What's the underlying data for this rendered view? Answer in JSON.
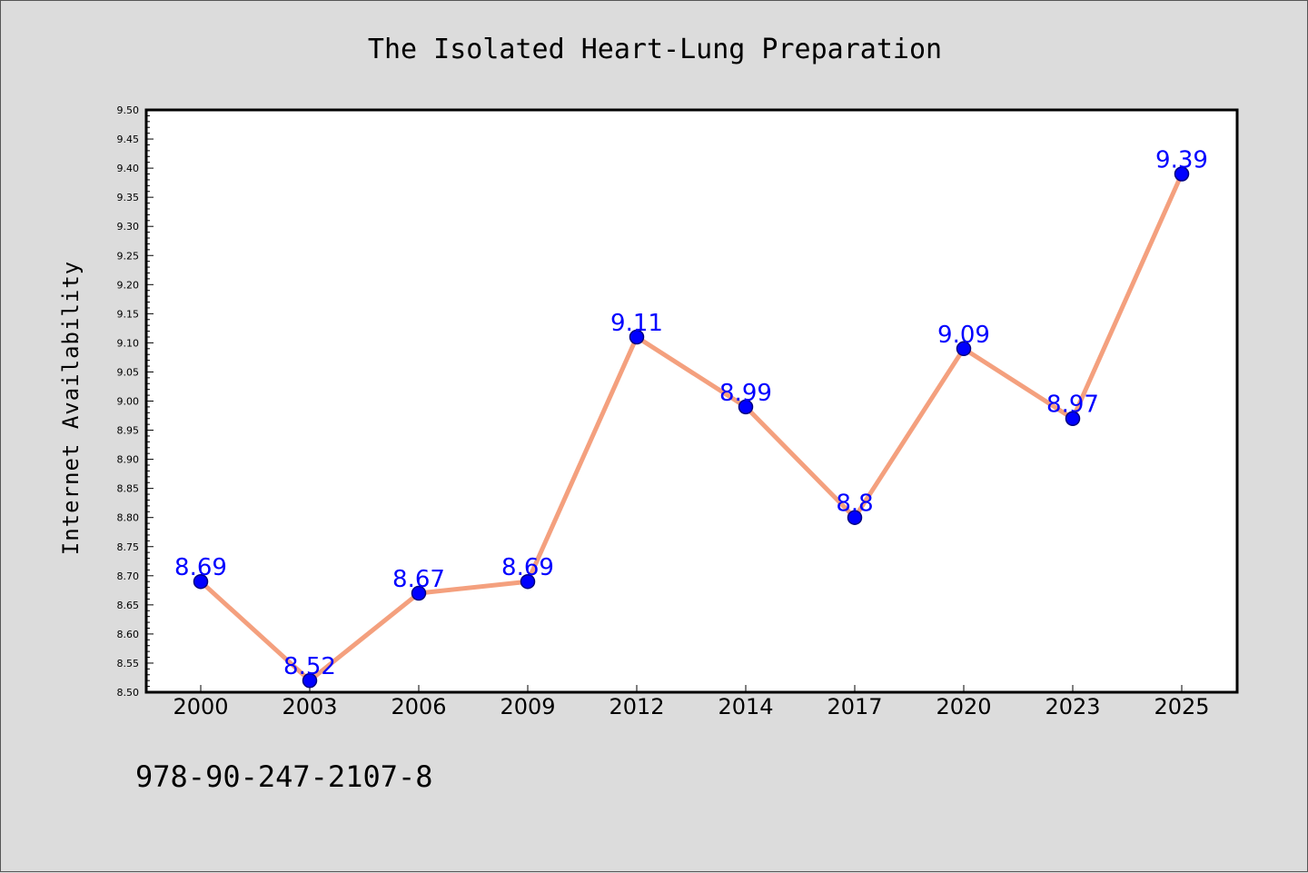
{
  "chart_data": {
    "type": "line",
    "title": "The Isolated Heart-Lung Preparation",
    "xlabel": "",
    "ylabel": "Internet Availability",
    "categories": [
      "2000",
      "2003",
      "2006",
      "2009",
      "2012",
      "2014",
      "2017",
      "2020",
      "2023",
      "2025"
    ],
    "series": [
      {
        "values": [
          8.69,
          8.52,
          8.67,
          8.69,
          9.11,
          8.99,
          8.8,
          9.09,
          8.97,
          9.39
        ],
        "data_labels": [
          "8.69",
          "8.52",
          "8.67",
          "8.69",
          "9.11",
          "8.99",
          "8.8",
          "9.09",
          "8.97",
          "9.39"
        ]
      }
    ],
    "ylim": [
      8.5,
      9.5
    ],
    "yticks": [
      "8.50",
      "8.55",
      "8.60",
      "8.65",
      "8.70",
      "8.75",
      "8.80",
      "8.85",
      "8.90",
      "8.95",
      "9.00",
      "9.05",
      "9.10",
      "9.15",
      "9.20",
      "9.25",
      "9.30",
      "9.35",
      "9.40",
      "9.45",
      "9.50"
    ],
    "grid": false,
    "colors": {
      "line": "#f4a07e",
      "marker": "#0000ff",
      "marker_edge": "#000080",
      "data_label": "#0000ff",
      "plot_background": "#ffffff",
      "figure_background": "#dcdcdc"
    }
  },
  "footer": {
    "isbn": "978-90-247-2107-8"
  }
}
